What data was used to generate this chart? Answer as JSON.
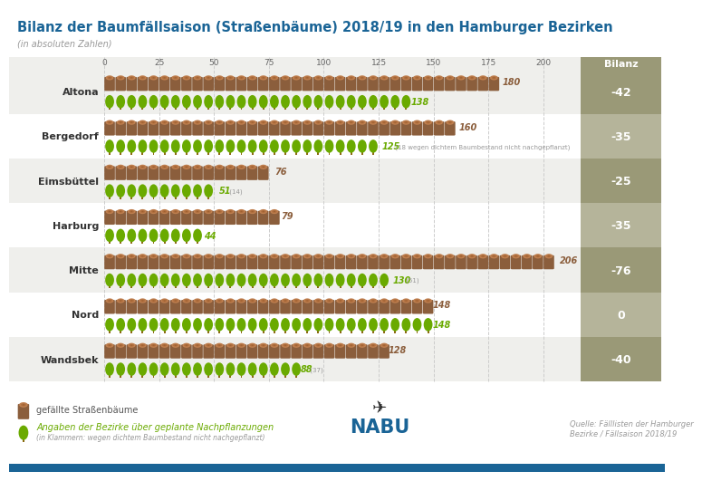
{
  "title": "Bilanz der Baumfällsaison (Straßenbäume) 2018/19 in den Hamburger Bezirken",
  "subtitle": "(in absoluten Zahlen)",
  "districts": [
    "Altona",
    "Bergedorf",
    "Eimsbüttel",
    "Harburg",
    "Mitte",
    "Nord",
    "Wandsbek"
  ],
  "felled": [
    180,
    160,
    76,
    79,
    206,
    148,
    128
  ],
  "planted": [
    138,
    125,
    51,
    44,
    130,
    148,
    88
  ],
  "planted_notes": [
    "",
    " (18 wegen dichtem Baumbestand nicht nachgepflanzt)",
    " (14)",
    "",
    " (51)",
    "",
    " (37)"
  ],
  "balance": [
    -42,
    -35,
    -25,
    -35,
    -76,
    0,
    -40
  ],
  "x_ticks": [
    0,
    25,
    50,
    75,
    100,
    125,
    150,
    175,
    200
  ],
  "x_max": 215,
  "felled_color": "#8B5E3C",
  "felled_top_color": "#A0522D",
  "planted_color": "#6aaa00",
  "planted_trunk_color": "#8B6914",
  "balance_bg_colors": [
    "#9a9977",
    "#b5b49a",
    "#9a9977",
    "#b5b49a",
    "#9a9977",
    "#b5b49a",
    "#9a9977"
  ],
  "row_bg_colors": [
    "#efefec",
    "#ffffff",
    "#efefec",
    "#ffffff",
    "#efefec",
    "#ffffff",
    "#efefec"
  ],
  "header_bg": "#efefec",
  "title_color": "#1a6496",
  "subtitle_color": "#999999",
  "tick_color": "#666666",
  "grid_color": "#cccccc",
  "district_label_color": "#333333",
  "bilanz_header_bg": "#9a9977",
  "felled_label_color": "#8B5E3C",
  "planted_label_color": "#6aaa00",
  "note_color": "#999999",
  "balance_text_color": "#ffffff",
  "legend_felled_text": "gefällte Straßenbäume",
  "legend_planted_text": "Angaben der Bezirke über geplante Nachpflanzungen",
  "legend_planted_sub": "(in Klammern: wegen dichtem Baumbestand nicht nachgepflanzt)",
  "source_text": "Quelle: Fälllisten der Hamburger\nBezirke / Fällsaison 2018/19",
  "bottom_bar_color": "#1a6496",
  "icons_per_unit": 5
}
